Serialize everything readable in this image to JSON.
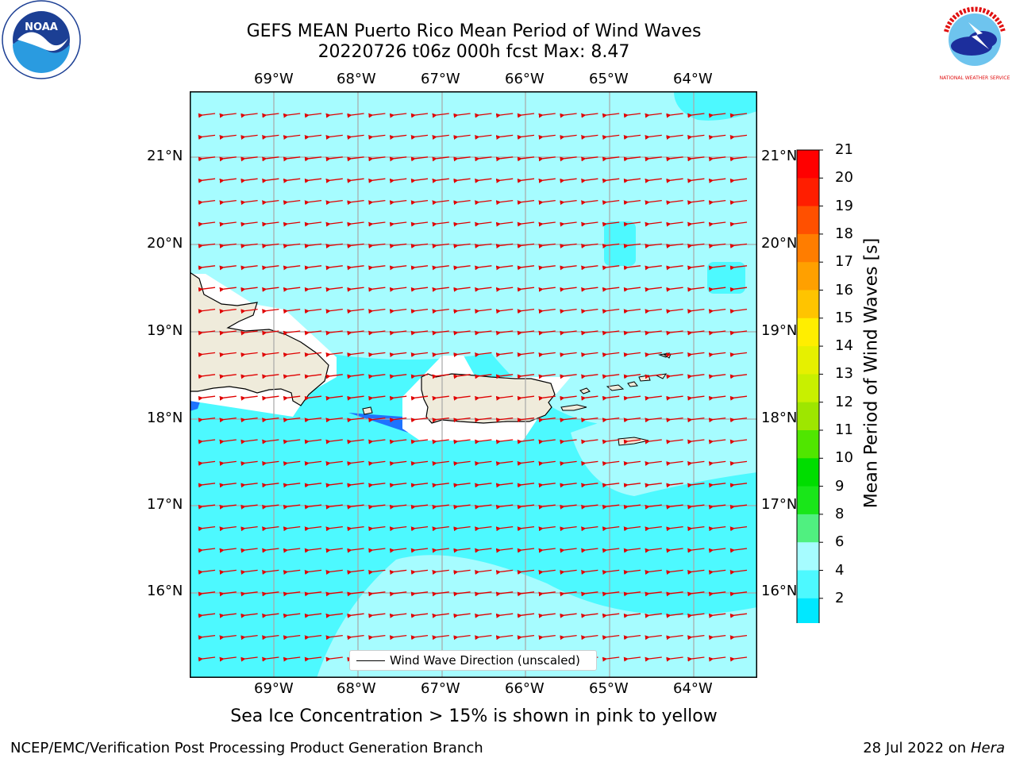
{
  "title": {
    "line1": "GEFS MEAN Puerto Rico Mean Period of Wind Waves",
    "line2": "20220726 t06z 000h fcst   Max: 8.47"
  },
  "map": {
    "lon_labels": [
      "69°W",
      "68°W",
      "67°W",
      "66°W",
      "65°W",
      "64°W"
    ],
    "lat_labels": [
      "21°N",
      "20°N",
      "19°N",
      "18°N",
      "17°N",
      "16°N"
    ],
    "legend": "Wind Wave Direction (unscaled)",
    "arrow_color": "#e00000",
    "land_color": "#efebdb"
  },
  "colorbar": {
    "title": "Mean Period of Wind Waves [s]",
    "ticks": [
      "2",
      "4",
      "6",
      "8",
      "9",
      "10",
      "11",
      "12",
      "13",
      "14",
      "15",
      "16",
      "17",
      "18",
      "19",
      "20",
      "21"
    ],
    "colors": [
      "#1e73ff",
      "#00e8ff",
      "#4df9ff",
      "#a6fcff",
      "#50f080",
      "#19e619",
      "#00dd00",
      "#50e600",
      "#9ee600",
      "#c8f000",
      "#e6f000",
      "#ffee00",
      "#ffc400",
      "#ffa000",
      "#ff7d00",
      "#ff5000",
      "#ff1e00",
      "#ff0000"
    ],
    "under_color": "#0000ee"
  },
  "note": "Sea Ice Concentration > 15% is shown in pink to yellow",
  "footer": {
    "left": "NCEP/EMC/Verification Post Processing Product Generation Branch",
    "right_date": "28 Jul 2022 on",
    "right_host": "Hera"
  },
  "logos": {
    "noaa": "NOAA",
    "nws": "NATIONAL WEATHER SERVICE"
  }
}
